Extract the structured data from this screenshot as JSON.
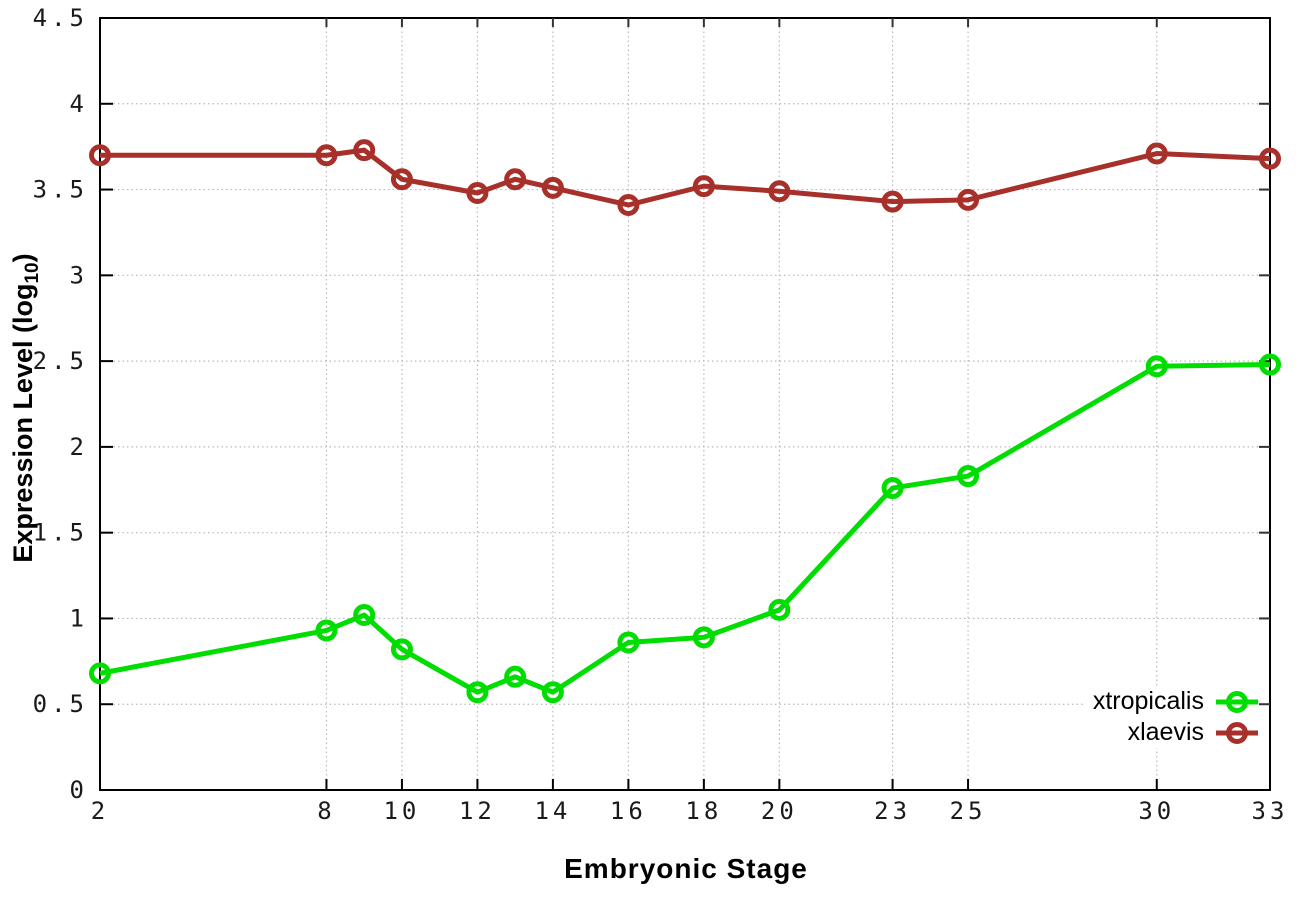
{
  "chart_data": {
    "type": "line",
    "title": "",
    "xlabel": "Embryonic Stage",
    "ylabel": "Expression Level (log10)",
    "ylabel_prefix": "Expression Level (log",
    "ylabel_sub": "10",
    "ylabel_suffix": ")",
    "xlim": [
      2,
      33
    ],
    "ylim": [
      0,
      4.5
    ],
    "grid": true,
    "legend_position": "bottom-right-inside",
    "x": [
      2,
      8,
      9,
      10,
      12,
      13,
      14,
      16,
      18,
      20,
      23,
      25,
      30,
      33
    ],
    "xtick_values": [
      2,
      8,
      10,
      12,
      14,
      16,
      18,
      20,
      23,
      25,
      30,
      33
    ],
    "xtick_labels": [
      "2",
      "8",
      "10",
      "12",
      "14",
      "16",
      "18",
      "20",
      "23",
      "25",
      "30",
      "33"
    ],
    "ytick_values": [
      0,
      0.5,
      1,
      1.5,
      2,
      2.5,
      3,
      3.5,
      4,
      4.5
    ],
    "ytick_labels": [
      "0",
      "0.5",
      "1",
      "1.5",
      "2",
      "2.5",
      "3",
      "3.5",
      "4",
      "4.5"
    ],
    "series": [
      {
        "name": "xtropicalis",
        "color": "#00dd00",
        "values": [
          0.68,
          0.93,
          1.02,
          0.82,
          0.57,
          0.66,
          0.57,
          0.86,
          0.89,
          1.05,
          1.76,
          1.83,
          2.47,
          2.48
        ]
      },
      {
        "name": "xlaevis",
        "color": "#a8302a",
        "values": [
          3.7,
          3.7,
          3.73,
          3.56,
          3.48,
          3.56,
          3.51,
          3.41,
          3.52,
          3.49,
          3.43,
          3.44,
          3.71,
          3.68
        ]
      }
    ],
    "colors": {
      "grid": "#b9b9b9",
      "axis": "#000000",
      "background": "#ffffff"
    }
  }
}
